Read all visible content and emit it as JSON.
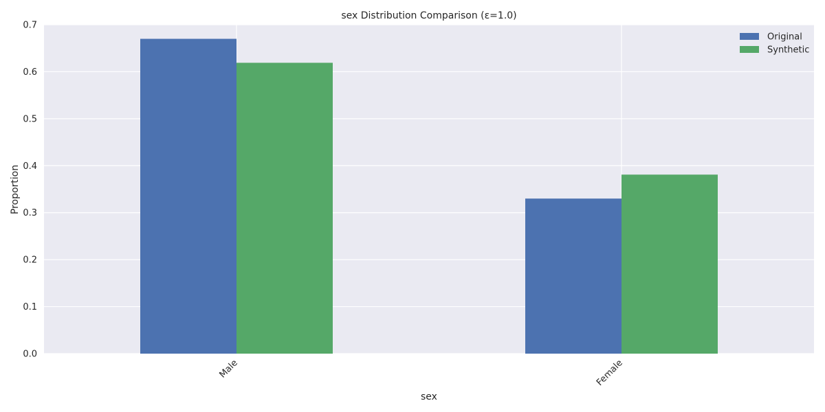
{
  "chart_data": {
    "type": "bar",
    "title": "sex Distribution Comparison (ε=1.0)",
    "xlabel": "sex",
    "ylabel": "Proportion",
    "categories": [
      "Male",
      "Female"
    ],
    "series": [
      {
        "name": "Original",
        "values": [
          0.67,
          0.33
        ]
      },
      {
        "name": "Synthetic",
        "values": [
          0.619,
          0.381
        ]
      }
    ],
    "ylim": [
      0,
      0.7
    ],
    "yticks": [
      0.0,
      0.1,
      0.2,
      0.3,
      0.4,
      0.5,
      0.6,
      0.7
    ],
    "ytick_labels": [
      "0.0",
      "0.1",
      "0.2",
      "0.3",
      "0.4",
      "0.5",
      "0.6",
      "0.7"
    ],
    "grid": true,
    "legend_position": "top-right",
    "colors": {
      "Original": "#4C72B0",
      "Synthetic": "#55A868",
      "background": "#EAEAF2",
      "grid": "#FFFFFF"
    }
  }
}
